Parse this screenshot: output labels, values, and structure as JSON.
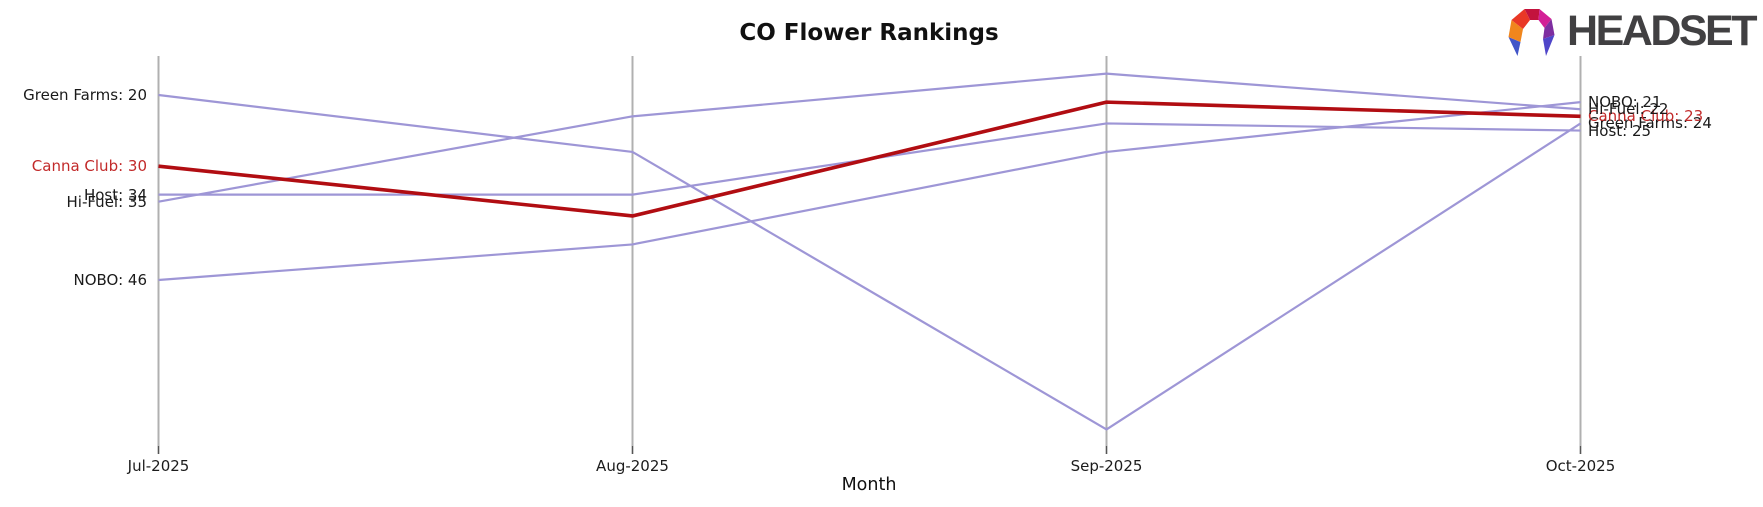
{
  "header": {
    "title": "CO Flower Rankings"
  },
  "logo": {
    "brand": "HEADSET"
  },
  "x_axis": {
    "title": "Month"
  },
  "colors": {
    "line_default": "#9e96d6",
    "line_highlight": "#b10d12",
    "label_default": "#1a1a1a",
    "label_highlight": "#c22a2a",
    "axis_spine": "#b0b0b0",
    "axis_tick": "#555555"
  },
  "chart_data": {
    "type": "line",
    "subtype": "bump-ranking",
    "title": "CO Flower Rankings",
    "xlabel": "Month",
    "categories": [
      "Jul-2025",
      "Aug-2025",
      "Sep-2025",
      "Oct-2025"
    ],
    "series": [
      {
        "name": "Green Farms",
        "values": [
          20,
          28,
          67,
          24
        ],
        "highlight": false
      },
      {
        "name": "Canna Club",
        "values": [
          30,
          37,
          21,
          23
        ],
        "highlight": true
      },
      {
        "name": "Host",
        "values": [
          34,
          34,
          24,
          25
        ],
        "highlight": false
      },
      {
        "name": "Hi-Fuel",
        "values": [
          35,
          23,
          17,
          22
        ],
        "highlight": false
      },
      {
        "name": "NOBO",
        "values": [
          46,
          41,
          28,
          21
        ],
        "highlight": false
      }
    ],
    "value_axis_direction": "lower-rank-at-top",
    "grid": false,
    "legend": "inline-endpoint-labels",
    "endpoint_label_format": "{name}: {value}"
  }
}
